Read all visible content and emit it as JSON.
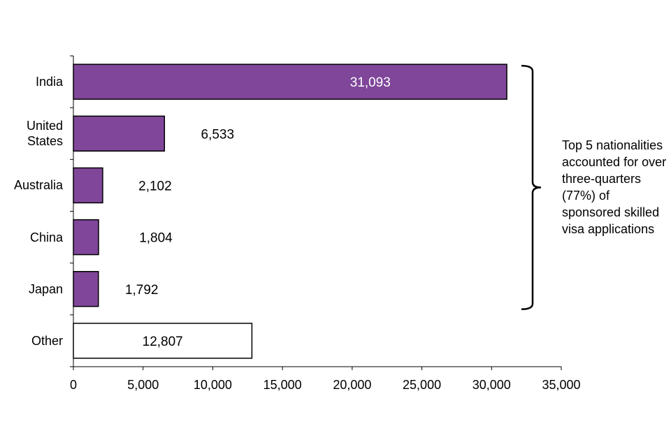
{
  "chart_data": {
    "type": "bar",
    "orientation": "horizontal",
    "categories": [
      "India",
      "United States",
      "Australia",
      "China",
      "Japan",
      "Other"
    ],
    "category_display": [
      "India",
      "United\nStates",
      "Australia",
      "China",
      "Japan",
      "Other"
    ],
    "values": [
      31093,
      6533,
      2102,
      1804,
      1792,
      12807
    ],
    "value_labels": [
      "31,093",
      "6,533",
      "2,102",
      "1,804",
      "1,792",
      "12,807"
    ],
    "bar_fills": [
      "#7f4699",
      "#7f4699",
      "#7f4699",
      "#7f4699",
      "#7f4699",
      "#ffffff"
    ],
    "label_colors": [
      "#ffffff",
      "#000000",
      "#000000",
      "#000000",
      "#000000",
      "#000000"
    ],
    "xlim": [
      0,
      35000
    ],
    "xticks": [
      0,
      5000,
      10000,
      15000,
      20000,
      25000,
      30000,
      35000
    ],
    "xtick_labels": [
      "0",
      "5,000",
      "10,000",
      "15,000",
      "20,000",
      "25,000",
      "30,000",
      "35,000"
    ],
    "title": "",
    "xlabel": "",
    "ylabel": "",
    "grid": false,
    "annotation": "Top 5 nationalities accounted for over three-quarters (77%) of sponsored skilled visa applications",
    "bracket_spans_categories": [
      "India",
      "Japan"
    ]
  }
}
